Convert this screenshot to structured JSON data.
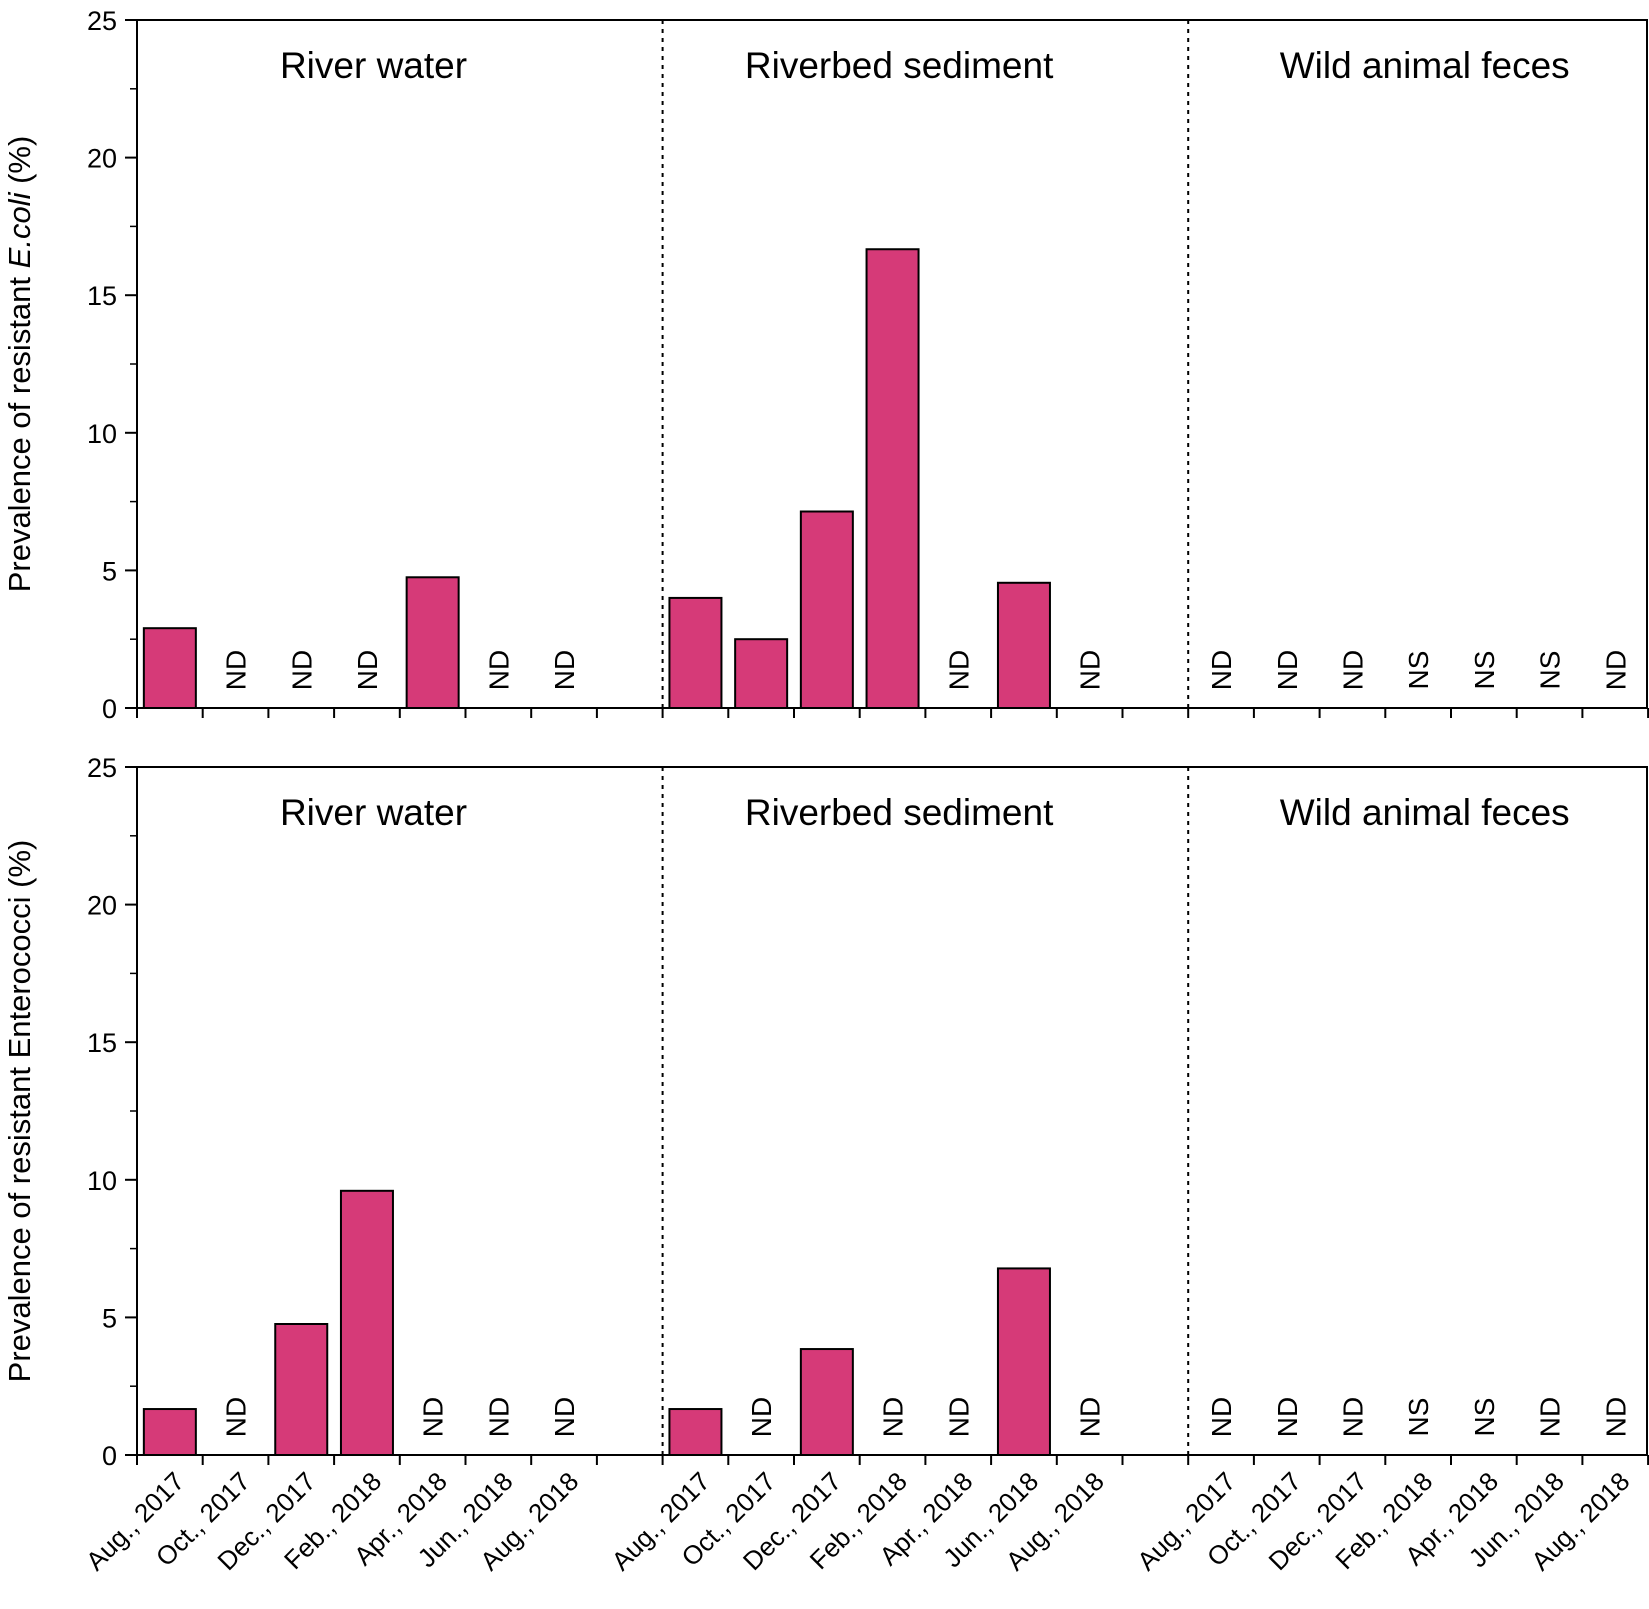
{
  "colors": {
    "bar_fill": "#d63a78",
    "bar_stroke": "#000000",
    "axis": "#000000",
    "divider": "#000000"
  },
  "chart_data": [
    {
      "type": "bar",
      "ylabel_parts": [
        {
          "text": "Prevalence of  resistant  ",
          "italic": false
        },
        {
          "text": "E.coli",
          "italic": true
        },
        {
          "text": "  (%)",
          "italic": false
        }
      ],
      "ylim": [
        0,
        25
      ],
      "yticks": [
        0,
        5,
        10,
        15,
        20,
        25
      ],
      "show_category_labels": false,
      "groups": [
        {
          "name": "River water",
          "categories": [
            "Aug., 2017",
            "Oct., 2017",
            "Dec., 2017",
            "Feb., 2018",
            "Apr., 2018",
            "Jun., 2018",
            "Aug., 2018"
          ],
          "values": [
            2.9,
            null,
            null,
            null,
            4.75,
            null,
            null
          ],
          "notes": [
            "",
            "ND",
            "ND",
            "ND",
            "",
            "ND",
            "ND"
          ]
        },
        {
          "name": "Riverbed sediment",
          "categories": [
            "Aug., 2017",
            "Oct., 2017",
            "Dec., 2017",
            "Feb., 2018",
            "Apr., 2018",
            "Jun., 2018",
            "Aug., 2018"
          ],
          "values": [
            4.0,
            2.5,
            7.14,
            16.67,
            null,
            4.55,
            null
          ],
          "notes": [
            "",
            "",
            "",
            "",
            "ND",
            "",
            "ND"
          ]
        },
        {
          "name": "Wild animal feces",
          "categories": [
            "Aug., 2017",
            "Oct., 2017",
            "Dec., 2017",
            "Feb., 2018",
            "Apr., 2018",
            "Jun., 2018",
            "Aug., 2018"
          ],
          "values": [
            null,
            null,
            null,
            null,
            null,
            null,
            null
          ],
          "notes": [
            "ND",
            "ND",
            "ND",
            "NS",
            "NS",
            "NS",
            "ND"
          ]
        }
      ]
    },
    {
      "type": "bar",
      "ylabel_parts": [
        {
          "text": "Prevalence of  resistant Enterococci  (%)",
          "italic": false
        }
      ],
      "ylim": [
        0,
        25
      ],
      "yticks": [
        0,
        5,
        10,
        15,
        20,
        25
      ],
      "show_category_labels": true,
      "groups": [
        {
          "name": "River water",
          "categories": [
            "Aug., 2017",
            "Oct., 2017",
            "Dec., 2017",
            "Feb., 2018",
            "Apr., 2018",
            "Jun., 2018",
            "Aug., 2018"
          ],
          "values": [
            1.67,
            null,
            4.76,
            9.6,
            null,
            null,
            null
          ],
          "notes": [
            "",
            "ND",
            "",
            "",
            "ND",
            "ND",
            "ND"
          ]
        },
        {
          "name": "Riverbed sediment",
          "categories": [
            "Aug., 2017",
            "Oct., 2017",
            "Dec., 2017",
            "Feb., 2018",
            "Apr., 2018",
            "Jun., 2018",
            "Aug., 2018"
          ],
          "values": [
            1.67,
            null,
            3.85,
            null,
            null,
            6.78,
            null
          ],
          "notes": [
            "",
            "ND",
            "",
            "ND",
            "ND",
            "",
            "ND"
          ]
        },
        {
          "name": "Wild animal feces",
          "categories": [
            "Aug., 2017",
            "Oct., 2017",
            "Dec., 2017",
            "Feb., 2018",
            "Apr., 2018",
            "Jun., 2018",
            "Aug., 2018"
          ],
          "values": [
            null,
            null,
            null,
            null,
            null,
            null,
            null
          ],
          "notes": [
            "ND",
            "ND",
            "ND",
            "NS",
            "NS",
            "ND",
            "ND"
          ]
        }
      ]
    }
  ]
}
